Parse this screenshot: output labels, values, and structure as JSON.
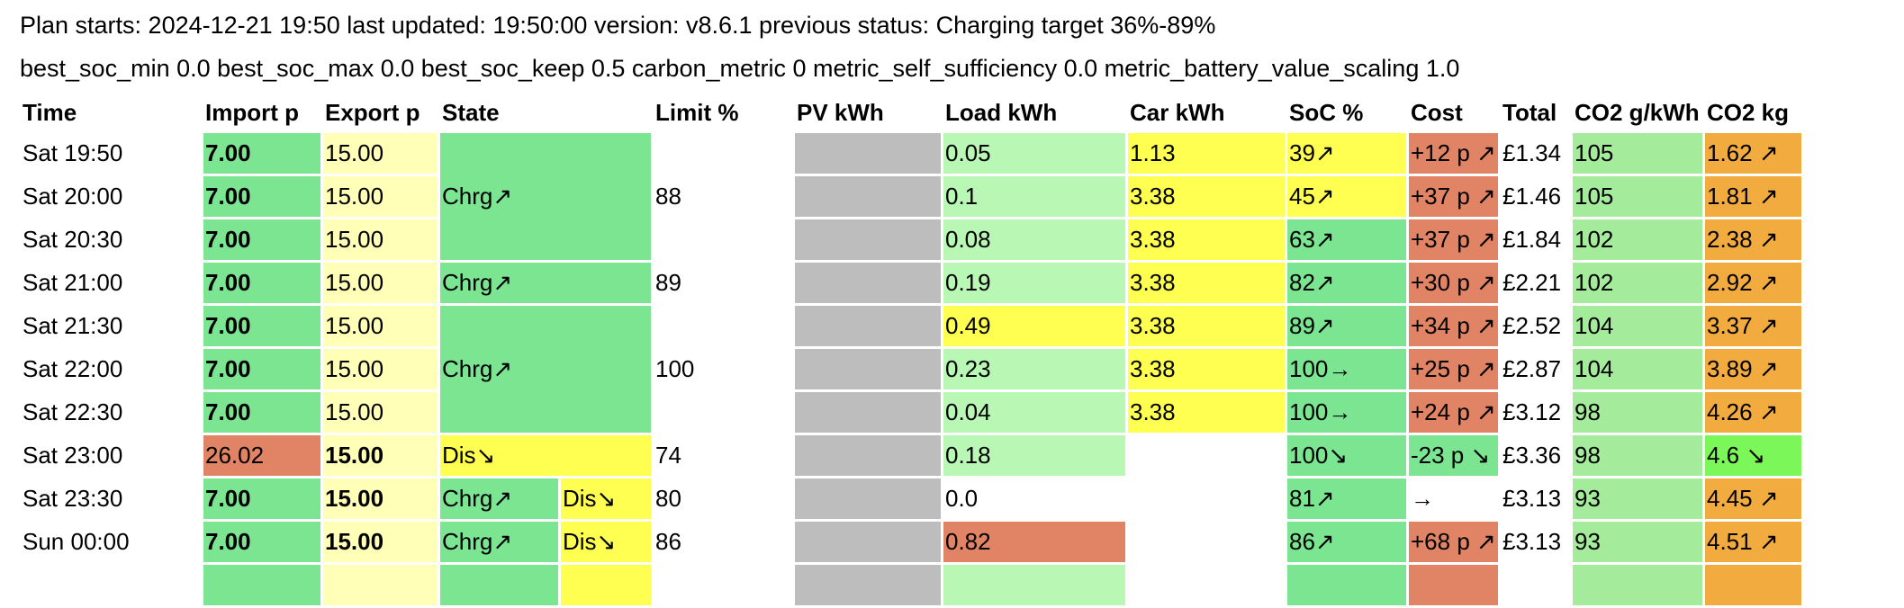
{
  "header": {
    "line1": "Plan starts: 2024-12-21 19:50 last updated: 19:50:00 version: v8.6.1 previous status: Charging target 36%-89%",
    "line2": "best_soc_min 0.0 best_soc_max 0.0 best_soc_keep 0.5 carbon_metric 0 metric_self_sufficiency 0.0 metric_battery_value_scaling 1.0"
  },
  "columns": {
    "time": "Time",
    "import": "Import p",
    "export": "Export p",
    "state": "State",
    "limit": "Limit %",
    "pv": "PV kWh",
    "load": "Load kWh",
    "car": "Car kWh",
    "soc": "SoC %",
    "cost": "Cost",
    "total": "Total",
    "co2_intensity": "CO2 g/kWh",
    "co2_kg": "CO2 kg"
  },
  "colors": {
    "green": "#7be591",
    "light_green": "#b8f7b4",
    "yellow": "#ffff52",
    "light_yellow": "#ffffb8",
    "red": "#e08465",
    "grey": "#bdbdbd",
    "orange": "#f2ab3f"
  },
  "rows": [
    {
      "time": "Sat 19:50",
      "import": "7.00",
      "export": "15.00",
      "state": "",
      "state2": "",
      "limit": "",
      "pv": "",
      "load": "0.05",
      "car": "1.13",
      "soc": "39↗",
      "cost": "+12 p ↗",
      "total": "£1.34",
      "co2_intensity": "105",
      "co2_kg": "1.62 ↗"
    },
    {
      "time": "Sat 20:00",
      "import": "7.00",
      "export": "15.00",
      "state": "Chrg↗",
      "state2": "",
      "limit": "88",
      "pv": "",
      "load": "0.1",
      "car": "3.38",
      "soc": "45↗",
      "cost": "+37 p ↗",
      "total": "£1.46",
      "co2_intensity": "105",
      "co2_kg": "1.81 ↗"
    },
    {
      "time": "Sat 20:30",
      "import": "7.00",
      "export": "15.00",
      "state": "",
      "state2": "",
      "limit": "",
      "pv": "",
      "load": "0.08",
      "car": "3.38",
      "soc": "63↗",
      "cost": "+37 p ↗",
      "total": "£1.84",
      "co2_intensity": "102",
      "co2_kg": "2.38 ↗"
    },
    {
      "time": "Sat 21:00",
      "import": "7.00",
      "export": "15.00",
      "state": "Chrg↗",
      "state2": "",
      "limit": "89",
      "pv": "",
      "load": "0.19",
      "car": "3.38",
      "soc": "82↗",
      "cost": "+30 p ↗",
      "total": "£2.21",
      "co2_intensity": "102",
      "co2_kg": "2.92 ↗"
    },
    {
      "time": "Sat 21:30",
      "import": "7.00",
      "export": "15.00",
      "state": "",
      "state2": "",
      "limit": "",
      "pv": "",
      "load": "0.49",
      "car": "3.38",
      "soc": "89↗",
      "cost": "+34 p ↗",
      "total": "£2.52",
      "co2_intensity": "104",
      "co2_kg": "3.37 ↗"
    },
    {
      "time": "Sat 22:00",
      "import": "7.00",
      "export": "15.00",
      "state": "Chrg↗",
      "state2": "",
      "limit": "100",
      "pv": "",
      "load": "0.23",
      "car": "3.38",
      "soc": "100→",
      "cost": "+25 p ↗",
      "total": "£2.87",
      "co2_intensity": "104",
      "co2_kg": "3.89 ↗"
    },
    {
      "time": "Sat 22:30",
      "import": "7.00",
      "export": "15.00",
      "state": "",
      "state2": "",
      "limit": "",
      "pv": "",
      "load": "0.04",
      "car": "3.38",
      "soc": "100→",
      "cost": "+24 p ↗",
      "total": "£3.12",
      "co2_intensity": "98",
      "co2_kg": "4.26 ↗"
    },
    {
      "time": "Sat 23:00",
      "import": "26.02",
      "export": "15.00",
      "state": "Dis↘",
      "state2": "",
      "limit": "74",
      "pv": "",
      "load": "0.18",
      "car": "",
      "soc": "100↘",
      "cost": "-23 p ↘",
      "total": "£3.36",
      "co2_intensity": "98",
      "co2_kg": "4.6 ↘"
    },
    {
      "time": "Sat 23:30",
      "import": "7.00",
      "export": "15.00",
      "state": "Chrg↗",
      "state2": "Dis↘",
      "limit": "80",
      "pv": "",
      "load": "0.0",
      "car": "",
      "soc": "81↗",
      "cost": "→",
      "total": "£3.13",
      "co2_intensity": "93",
      "co2_kg": "4.45 ↗"
    },
    {
      "time": "Sun 00:00",
      "import": "7.00",
      "export": "15.00",
      "state": "Chrg↗",
      "state2": "Dis↘",
      "limit": "86",
      "pv": "",
      "load": "0.82",
      "car": "",
      "soc": "86↗",
      "cost": "+68 p ↗",
      "total": "£3.13",
      "co2_intensity": "93",
      "co2_kg": "4.51 ↗"
    }
  ]
}
